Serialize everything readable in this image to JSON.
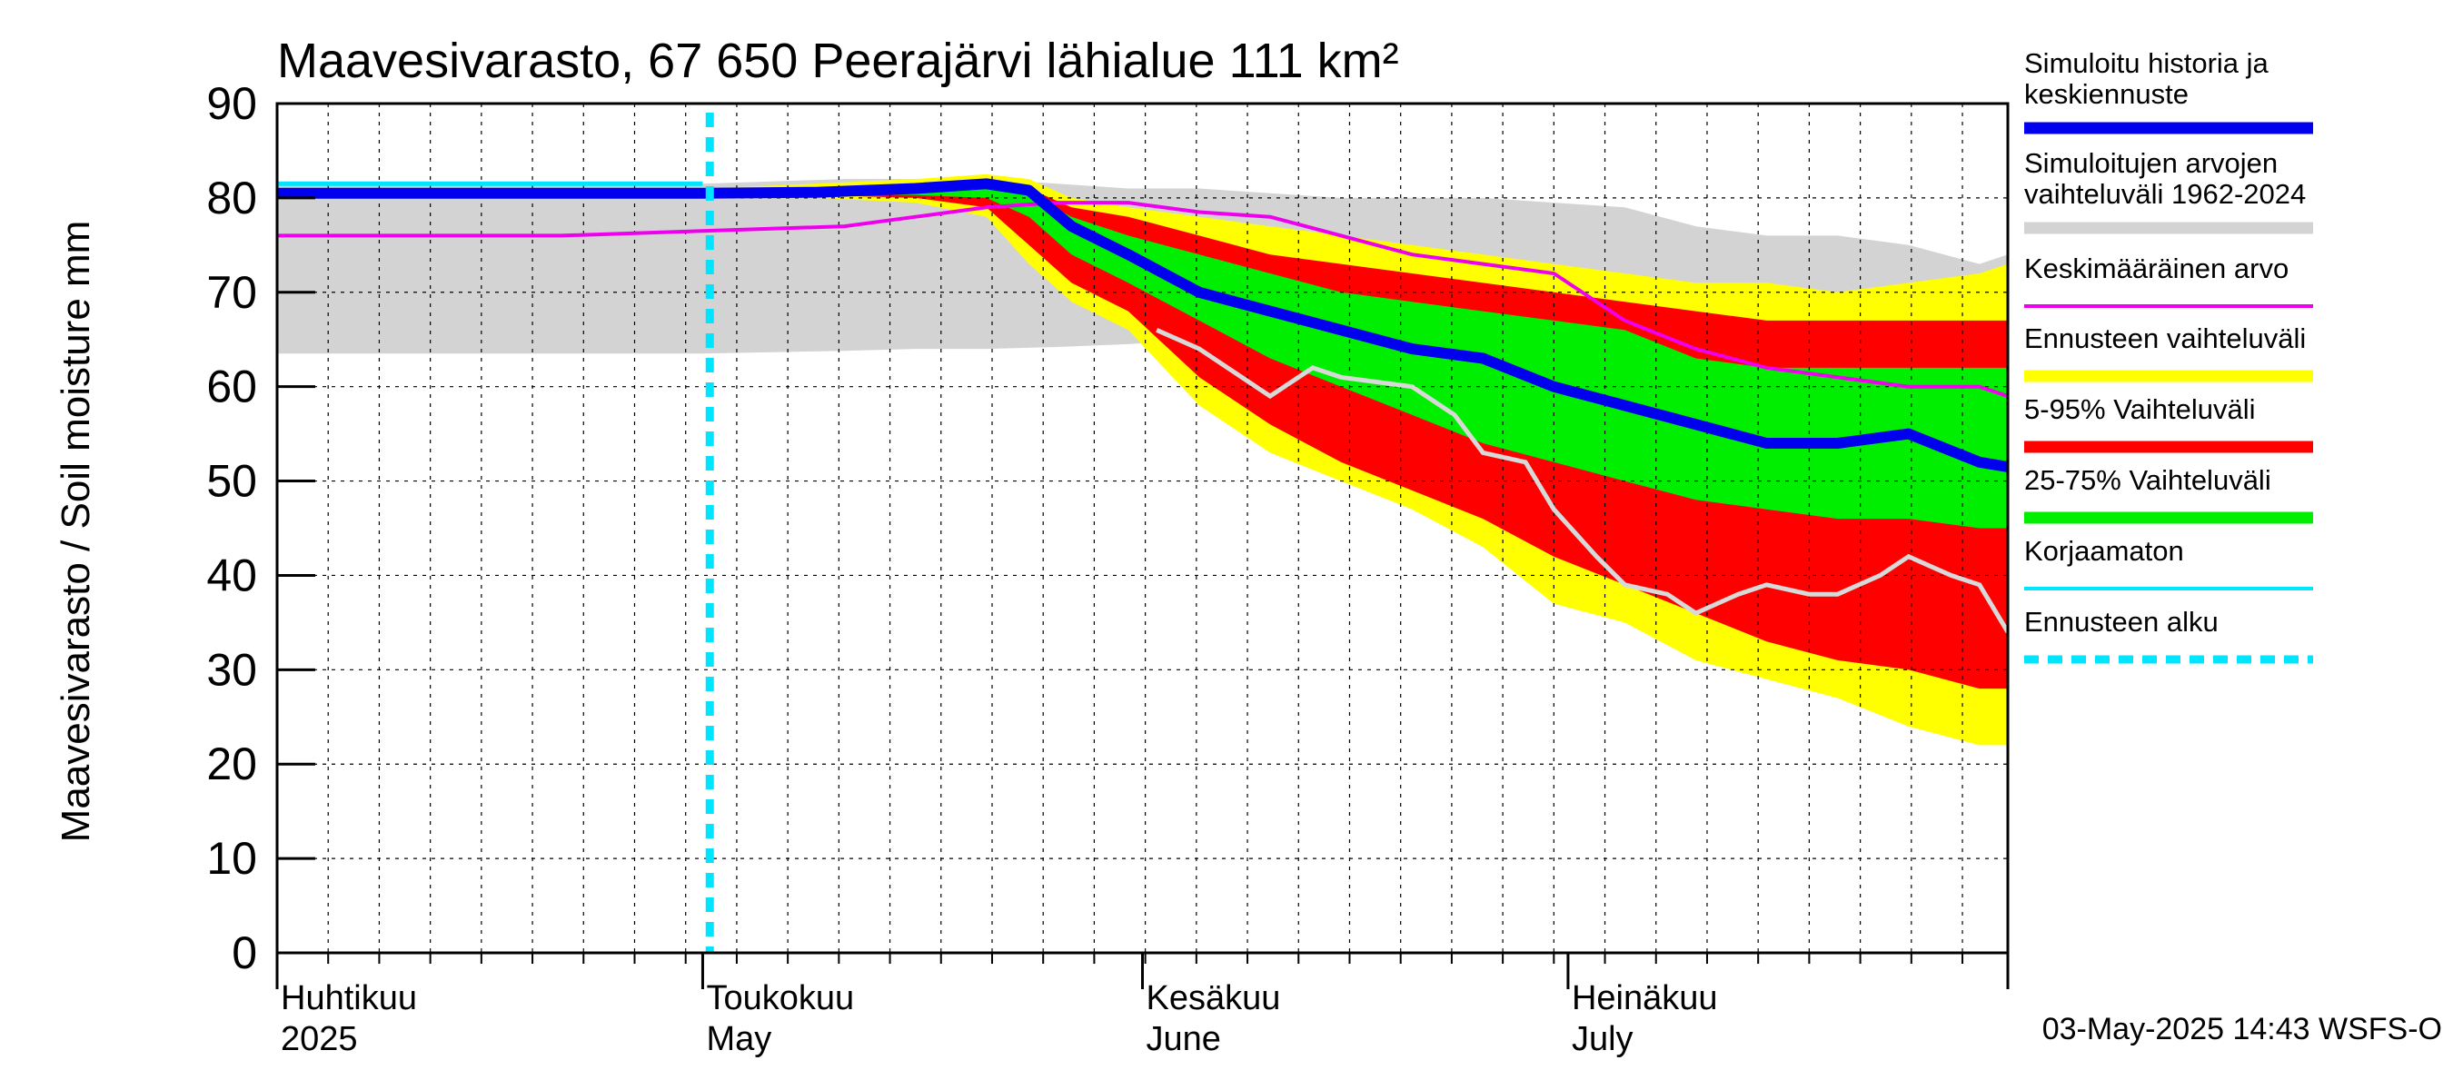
{
  "chart_data": {
    "type": "area",
    "title": "Maavesivarasto, 67 650 Peerajärvi lähialue 111 km²",
    "ylabel": "Maavesivarasto / Soil moisture   mm",
    "ylim": [
      0,
      90
    ],
    "yticks": [
      0,
      10,
      20,
      30,
      40,
      50,
      60,
      70,
      80,
      90
    ],
    "x_range_days": [
      0,
      122
    ],
    "forecast_start_day": 30.5,
    "x_month_labels": [
      {
        "day": 0,
        "fi": "Huhtikuu",
        "en": "2025"
      },
      {
        "day": 30,
        "fi": "Toukokuu",
        "en": "May"
      },
      {
        "day": 61,
        "fi": "Kesäkuu",
        "en": "June"
      },
      {
        "day": 91,
        "fi": "Heinäkuu",
        "en": "July"
      }
    ],
    "x_month_boundaries": [
      0,
      30,
      61,
      91,
      122
    ],
    "colors": {
      "history": "#d3d3d3",
      "ensemble_range": "#ffff00",
      "p5_95": "#ff0000",
      "p25_75": "#00ee00",
      "median": "#0000ee",
      "mean": "#ee00ee",
      "uncorrected": "#00e5ff",
      "raw_sim": "#d9d9d9",
      "forecast_start": "#00e5ff",
      "grid": "#000000"
    },
    "legend": [
      {
        "label": "Simuloitu historia ja",
        "label2": "keskiennuste",
        "key": "median"
      },
      {
        "label": "Simuloitujen arvojen",
        "label2": "vaihteluväli 1962-2024",
        "key": "history"
      },
      {
        "label": "Keskimääräinen arvo",
        "key": "mean"
      },
      {
        "label": "Ennusteen vaihteluväli",
        "key": "ensemble_range"
      },
      {
        "label": "5-95% Vaihteluväli",
        "key": "p5_95"
      },
      {
        "label": "25-75% Vaihteluväli",
        "key": "p25_75"
      },
      {
        "label": "Korjaamaton",
        "key": "uncorrected"
      },
      {
        "label": "Ennusteen alku",
        "key": "forecast_start"
      }
    ],
    "footer": "03-May-2025 14:43 WSFS-O",
    "series": {
      "history_band": {
        "x": [
          0,
          20,
          30,
          40,
          45,
          50,
          55,
          60,
          65,
          70,
          75,
          80,
          85,
          90,
          95,
          100,
          105,
          110,
          115,
          120,
          122
        ],
        "upper": [
          81.5,
          81.5,
          81.5,
          82,
          82,
          82,
          81.5,
          81,
          81,
          80.5,
          80,
          80,
          80,
          79.5,
          79,
          77,
          76,
          76,
          75,
          73,
          74
        ],
        "lower": [
          63.5,
          63.5,
          63.5,
          63.8,
          64,
          64,
          64.2,
          64.5,
          65,
          65,
          65,
          65,
          65,
          65,
          65,
          65,
          65,
          65,
          65,
          65,
          65
        ]
      },
      "ensemble_range": {
        "x": [
          0,
          30,
          38,
          45,
          50,
          53,
          56,
          60,
          65,
          70,
          75,
          80,
          85,
          90,
          95,
          100,
          105,
          110,
          115,
          120,
          122
        ],
        "upper": [
          81,
          81,
          81.5,
          82,
          82.5,
          82,
          80,
          79,
          78,
          77,
          76,
          75,
          74,
          73,
          72,
          71,
          71,
          70,
          71,
          72,
          73
        ],
        "lower": [
          80,
          80,
          80,
          79.5,
          78,
          73,
          69,
          66,
          58,
          53,
          50,
          47,
          43,
          37,
          35,
          31,
          29,
          27,
          24,
          22,
          22
        ]
      },
      "p5_95": {
        "x": [
          0,
          30,
          38,
          45,
          50,
          53,
          56,
          60,
          65,
          70,
          75,
          80,
          85,
          90,
          95,
          100,
          105,
          110,
          115,
          120,
          122
        ],
        "upper": [
          80.8,
          80.8,
          81,
          81.2,
          81.5,
          81,
          79,
          78,
          76,
          74,
          73,
          72,
          71,
          70,
          69,
          68,
          67,
          67,
          67,
          67,
          67
        ],
        "lower": [
          80.2,
          80.2,
          80.3,
          80,
          79,
          75,
          71,
          68,
          61,
          56,
          52,
          49,
          46,
          42,
          39,
          36,
          33,
          31,
          30,
          28,
          28
        ]
      },
      "p25_75": {
        "x": [
          0,
          30,
          38,
          45,
          50,
          53,
          56,
          60,
          65,
          70,
          75,
          80,
          85,
          90,
          95,
          100,
          105,
          110,
          115,
          120,
          122
        ],
        "upper": [
          80.6,
          80.6,
          80.7,
          80.8,
          81,
          80.5,
          78,
          76,
          74,
          72,
          70,
          69,
          68,
          67,
          66,
          63,
          62,
          62,
          62,
          62,
          62
        ],
        "lower": [
          80.4,
          80.4,
          80.4,
          80.3,
          80,
          78,
          74,
          71,
          67,
          63,
          60,
          57,
          54,
          52,
          50,
          48,
          47,
          46,
          46,
          45,
          45
        ]
      },
      "median": {
        "x": [
          0,
          30,
          38,
          45,
          50,
          53,
          56,
          60,
          65,
          70,
          75,
          80,
          85,
          90,
          95,
          100,
          105,
          110,
          115,
          120,
          122
        ],
        "y": [
          80.5,
          80.5,
          80.6,
          81,
          81.5,
          80.8,
          77,
          74,
          70,
          68,
          66,
          64,
          63,
          60,
          58,
          56,
          54,
          54,
          55,
          52,
          51.5
        ]
      },
      "mean": {
        "x": [
          0,
          20,
          30,
          40,
          45,
          50,
          55,
          60,
          65,
          70,
          75,
          80,
          85,
          90,
          95,
          100,
          105,
          110,
          115,
          120,
          122
        ],
        "y": [
          76,
          76,
          76.5,
          77,
          78,
          79,
          79.5,
          79.5,
          78.5,
          78,
          76,
          74,
          73,
          72,
          67,
          64,
          62,
          61,
          60,
          60,
          59
        ]
      },
      "uncorrected": {
        "x": [
          0,
          20,
          28,
          30
        ],
        "y": [
          81.5,
          81.5,
          81.5,
          81.5
        ]
      },
      "raw_sim": {
        "x": [
          62,
          65,
          70,
          73,
          75,
          80,
          83,
          85,
          88,
          90,
          93,
          95,
          98,
          100,
          103,
          105,
          108,
          110,
          113,
          115,
          118,
          120,
          122
        ],
        "y": [
          66,
          64,
          59,
          62,
          61,
          60,
          57,
          53,
          52,
          47,
          42,
          39,
          38,
          36,
          38,
          39,
          38,
          38,
          40,
          42,
          40,
          39,
          34
        ]
      }
    }
  }
}
